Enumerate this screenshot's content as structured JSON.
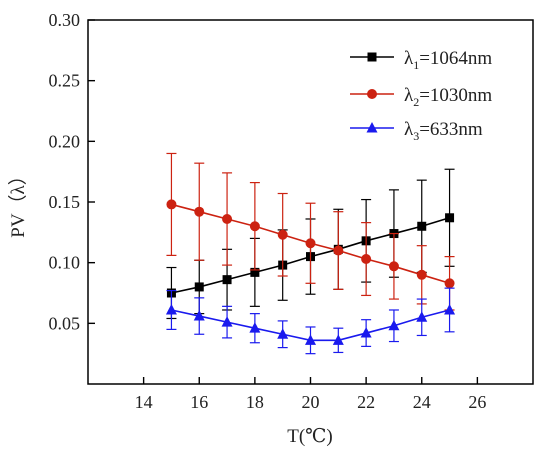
{
  "chart_data": {
    "type": "line",
    "title": "",
    "xlabel": "T(℃)",
    "ylabel": "PV（λ）",
    "xlim": [
      12,
      28
    ],
    "ylim": [
      0.0,
      0.3
    ],
    "xticks": [
      14,
      16,
      18,
      20,
      22,
      24,
      26
    ],
    "yticks": [
      0.05,
      0.1,
      0.15,
      0.2,
      0.25,
      0.3
    ],
    "ytick_labels": [
      "0.05",
      "0.10",
      "0.15",
      "0.20",
      "0.25",
      "0.30"
    ],
    "legend_position": "top-right",
    "grid": false,
    "x": [
      15,
      16,
      17,
      18,
      19,
      20,
      21,
      22,
      23,
      24,
      25
    ],
    "series": [
      {
        "name_main": "λ",
        "name_sub": "1",
        "name_rest": "=1064nm",
        "color": "#000000",
        "marker": "square",
        "values": [
          0.075,
          0.08,
          0.086,
          0.092,
          0.098,
          0.105,
          0.111,
          0.118,
          0.124,
          0.13,
          0.137
        ],
        "errors": [
          0.021,
          0.022,
          0.025,
          0.028,
          0.029,
          0.031,
          0.033,
          0.034,
          0.036,
          0.038,
          0.04
        ]
      },
      {
        "name_main": "λ",
        "name_sub": "2",
        "name_rest": "=1030nm",
        "color": "#cc2211",
        "marker": "circle",
        "values": [
          0.148,
          0.142,
          0.136,
          0.13,
          0.123,
          0.116,
          0.11,
          0.103,
          0.097,
          0.09,
          0.083
        ],
        "errors": [
          0.042,
          0.04,
          0.038,
          0.036,
          0.034,
          0.033,
          0.032,
          0.03,
          0.027,
          0.024,
          0.022
        ]
      },
      {
        "name_main": "λ",
        "name_sub": "3",
        "name_rest": "=633nm",
        "color": "#1a1aee",
        "marker": "triangle",
        "values": [
          0.061,
          0.056,
          0.051,
          0.046,
          0.041,
          0.036,
          0.036,
          0.042,
          0.048,
          0.055,
          0.061
        ],
        "errors": [
          0.016,
          0.015,
          0.013,
          0.012,
          0.011,
          0.011,
          0.01,
          0.011,
          0.013,
          0.015,
          0.018
        ]
      }
    ]
  }
}
